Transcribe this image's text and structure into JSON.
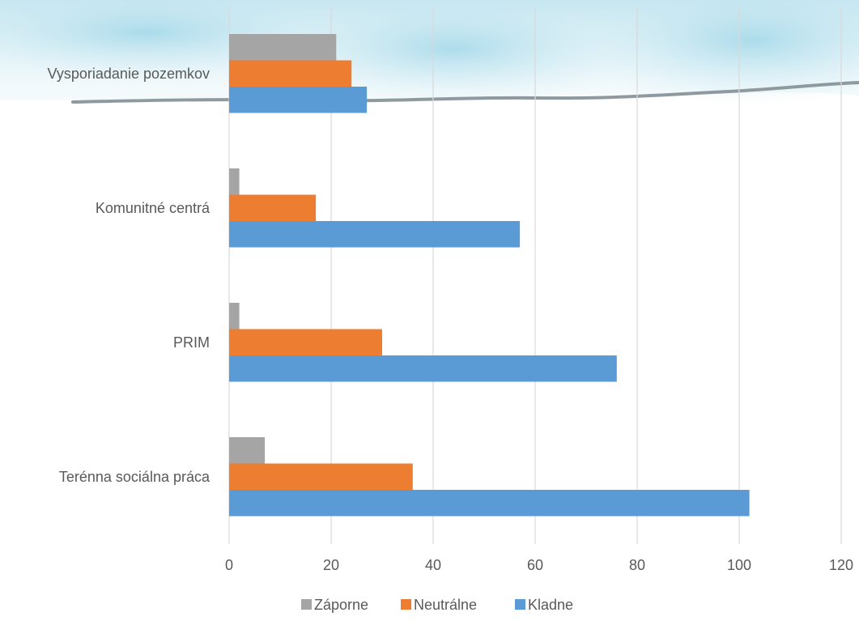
{
  "chart_data": {
    "type": "bar",
    "orientation": "horizontal",
    "title": "",
    "xlabel": "",
    "ylabel": "",
    "categories": [
      "Vysporiadanie pozemkov",
      "Komunitné centrá",
      "PRIM",
      "Terénna sociálna práca"
    ],
    "series": [
      {
        "name": "Záporne",
        "color": "#a5a5a5",
        "values": [
          21,
          2,
          2,
          7
        ]
      },
      {
        "name": "Neutrálne",
        "color": "#ed7d31",
        "values": [
          24,
          17,
          30,
          36
        ]
      },
      {
        "name": "Kladne",
        "color": "#5b9bd5",
        "values": [
          27,
          57,
          76,
          102
        ]
      }
    ],
    "xlim": [
      0,
      120
    ],
    "x_ticks": [
      0,
      20,
      40,
      60,
      80,
      100,
      120
    ],
    "grid": "vertical",
    "legend_position": "bottom"
  }
}
